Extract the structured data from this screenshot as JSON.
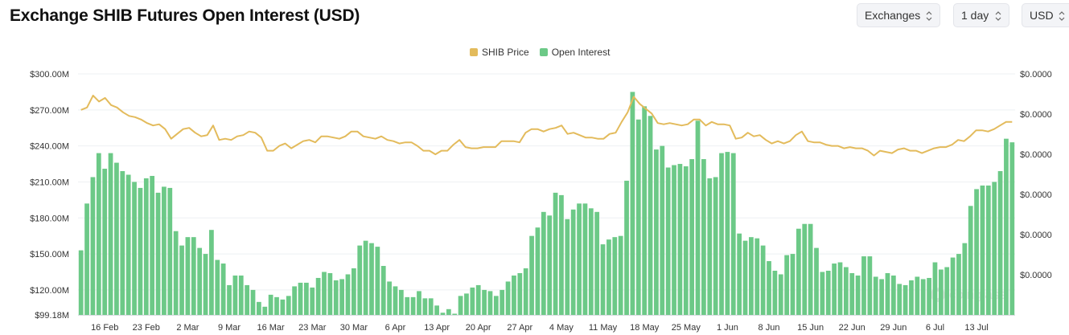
{
  "header": {
    "title": "Exchange SHIB Futures Open Interest (USD)"
  },
  "controls": {
    "exchanges_label": "Exchanges",
    "interval_label": "1 day",
    "currency_label": "USD"
  },
  "legend": [
    {
      "label": "SHIB Price",
      "color": "#e3bb5c"
    },
    {
      "label": "Open Interest",
      "color": "#6cc987"
    }
  ],
  "watermark": "coinglass",
  "chart_data": {
    "type": "bar",
    "title": "Exchange SHIB Futures Open Interest (USD)",
    "y_left": {
      "tick_labels": [
        "$300.00M",
        "$270.00M",
        "$240.00M",
        "$210.00M",
        "$180.00M",
        "$150.00M",
        "$120.00M",
        "$99.18M"
      ],
      "tick_values": [
        300,
        270,
        240,
        210,
        180,
        150,
        120,
        99.18
      ],
      "range": [
        99.18,
        300
      ],
      "unit": "USD millions"
    },
    "y_right": {
      "tick_labels": [
        "$0.0000",
        "$0.0000",
        "$0.0000",
        "$0.0000",
        "$0.0000",
        "$0.0000"
      ]
    },
    "x_tick_labels": [
      "16 Feb",
      "23 Feb",
      "2 Mar",
      "9 Mar",
      "16 Mar",
      "23 Mar",
      "30 Mar",
      "6 Apr",
      "13 Apr",
      "20 Apr",
      "27 Apr",
      "4 May",
      "11 May",
      "18 May",
      "25 May",
      "1 Jun",
      "8 Jun",
      "15 Jun",
      "22 Jun",
      "29 Jun",
      "6 Jul",
      "13 Jul"
    ],
    "x_tick_index": [
      4,
      11,
      18,
      25,
      32,
      39,
      46,
      53,
      60,
      67,
      74,
      81,
      88,
      95,
      102,
      109,
      116,
      123,
      130,
      137,
      144,
      151
    ],
    "grid": true,
    "legend_position": "top-center",
    "series": [
      {
        "name": "Open Interest",
        "type": "bar",
        "axis": "left",
        "color": "#6cc987",
        "values": [
          153,
          192,
          214,
          234,
          221,
          234,
          226,
          219,
          216,
          210,
          205,
          213,
          215,
          201,
          206,
          205,
          169,
          157,
          164,
          164,
          155,
          150,
          170,
          145,
          142,
          124,
          132,
          132,
          124,
          120,
          110,
          106,
          116,
          114,
          112,
          115,
          123,
          126,
          126,
          122,
          130,
          135,
          134,
          128,
          129,
          133,
          138,
          157,
          161,
          159,
          156,
          140,
          127,
          123,
          120,
          114,
          114,
          119,
          113,
          113,
          107,
          101,
          104,
          99,
          115,
          117,
          122,
          124,
          120,
          119,
          115,
          120,
          127,
          132,
          134,
          138,
          165,
          172,
          185,
          182,
          201,
          199,
          179,
          187,
          192,
          192,
          188,
          185,
          158,
          162,
          164,
          165,
          211,
          285,
          262,
          273,
          265,
          237,
          240,
          222,
          224,
          225,
          223,
          229,
          261,
          229,
          213,
          214,
          234,
          235,
          234,
          167,
          161,
          164,
          163,
          157,
          144,
          136,
          133,
          149,
          150,
          171,
          175,
          175,
          155,
          135,
          136,
          142,
          143,
          139,
          134,
          132,
          148,
          148,
          131,
          129,
          134,
          132,
          125,
          124,
          128,
          131,
          129,
          130,
          143,
          137,
          139,
          147,
          150,
          159,
          190,
          204,
          207,
          207,
          210,
          219,
          246,
          243
        ]
      },
      {
        "name": "SHIB Price",
        "type": "line",
        "axis": "right",
        "color": "#e3bb5c",
        "values_scaled_to_left_axis": [
          270,
          272,
          282,
          277,
          280,
          274,
          272,
          268,
          265,
          264,
          262,
          259,
          257,
          258,
          254,
          246,
          250,
          254,
          255,
          251,
          248,
          249,
          257,
          245,
          246,
          245,
          248,
          249,
          252,
          251,
          247,
          236,
          236,
          240,
          242,
          238,
          241,
          244,
          245,
          243,
          248,
          248,
          247,
          246,
          248,
          252,
          252,
          248,
          247,
          246,
          248,
          245,
          244,
          242,
          243,
          243,
          240,
          236,
          236,
          233,
          236,
          236,
          241,
          245,
          239,
          238,
          238,
          239,
          239,
          239,
          244,
          244,
          244,
          243,
          251,
          254,
          254,
          252,
          254,
          255,
          257,
          250,
          251,
          249,
          247,
          247,
          246,
          246,
          250,
          251,
          260,
          268,
          281,
          275,
          271,
          267,
          259,
          258,
          259,
          258,
          257,
          258,
          262,
          262,
          257,
          260,
          258,
          258,
          257,
          246,
          247,
          251,
          248,
          249,
          245,
          242,
          244,
          242,
          244,
          249,
          252,
          244,
          243,
          243,
          241,
          240,
          240,
          238,
          239,
          238,
          238,
          236,
          232,
          236,
          235,
          234,
          237,
          238,
          236,
          236,
          234,
          236,
          238,
          239,
          239,
          241,
          245,
          244,
          248,
          253,
          253,
          252,
          254,
          257,
          260,
          260
        ]
      }
    ]
  }
}
